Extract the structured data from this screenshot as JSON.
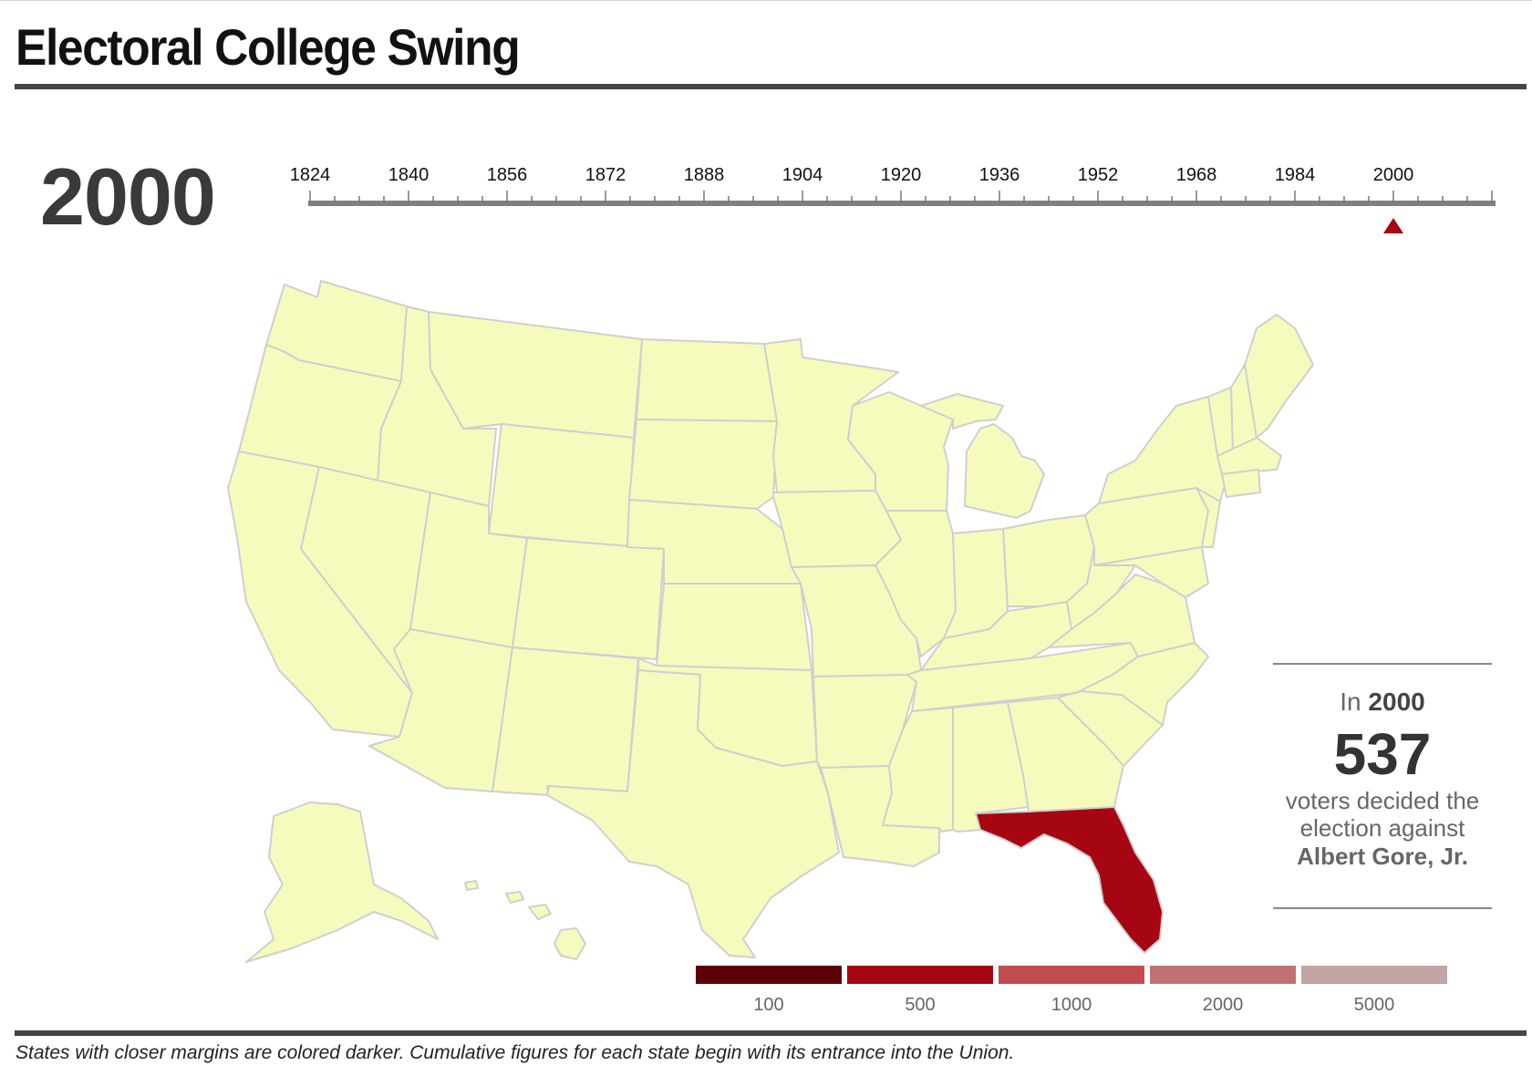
{
  "header": {
    "title": "Electoral College Swing"
  },
  "selected_year": "2000",
  "timeline": {
    "labels": [
      "1824",
      "1840",
      "1856",
      "1872",
      "1888",
      "1904",
      "1920",
      "1936",
      "1952",
      "1968",
      "1984",
      "2000"
    ],
    "selected": "2000"
  },
  "map": {
    "base_color": "#f6fbbd",
    "border_color": "#cfcfcf",
    "highlighted_state": "Florida",
    "highlight_color": "#a50612"
  },
  "callout": {
    "intro_prefix": "In",
    "year": "2000",
    "count": "537",
    "desc_line1": "voters decided the",
    "desc_line2": "election against",
    "candidate": "Albert Gore, Jr."
  },
  "legend": [
    {
      "label": "100",
      "color": "#5c0006"
    },
    {
      "label": "500",
      "color": "#a50612"
    },
    {
      "label": "1000",
      "color": "#c24d4d"
    },
    {
      "label": "2000",
      "color": "#c07272"
    },
    {
      "label": "5000",
      "color": "#c2a4a4"
    }
  ],
  "footnote": "States with closer margins are colored darker. Cumulative figures for each state begin with its entrance into the Union."
}
